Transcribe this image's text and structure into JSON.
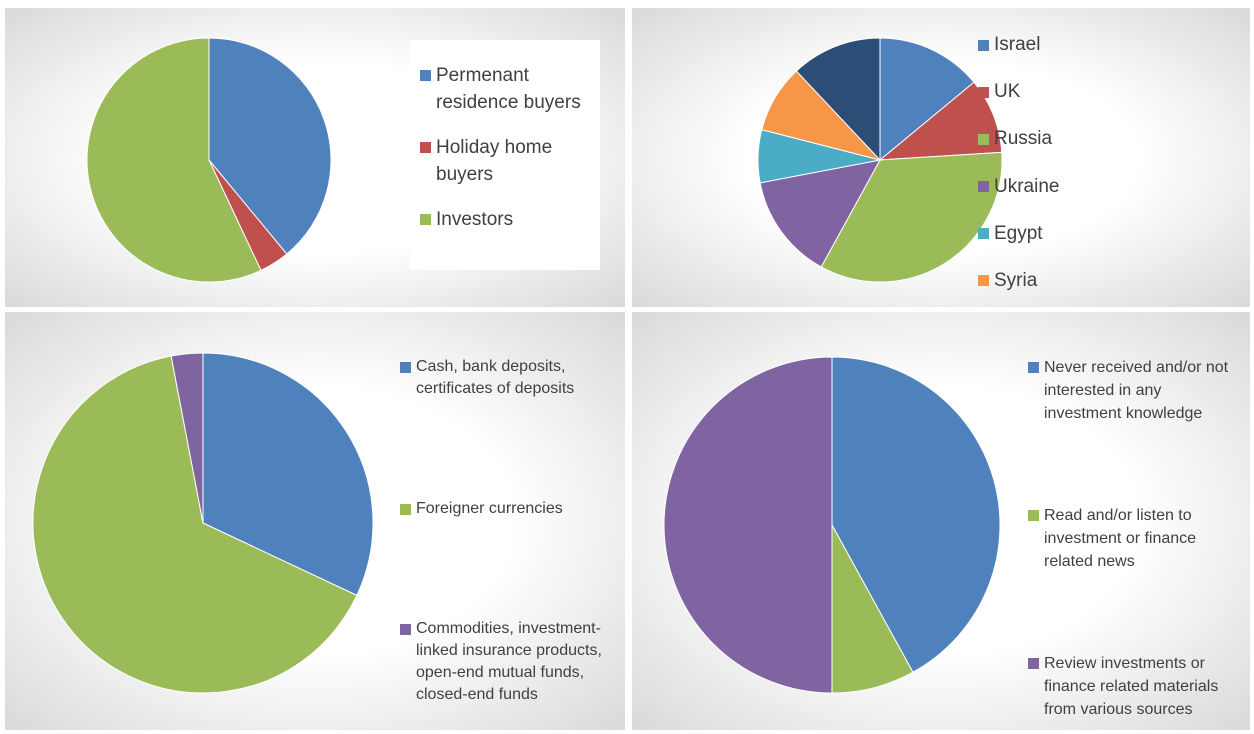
{
  "chart_data": [
    {
      "type": "pie",
      "categories": [
        "Permenant residence buyers",
        "Holiday home buyers",
        "Investors"
      ],
      "values": [
        39,
        4,
        57
      ],
      "colors": [
        "#4f81bd",
        "#c0504d",
        "#9bbb59"
      ],
      "legend": "right"
    },
    {
      "type": "pie",
      "categories": [
        "Israel",
        "UK",
        "Russia",
        "Ukraine",
        "Egypt",
        "Syria",
        null
      ],
      "values": [
        14,
        10,
        34,
        14,
        7,
        9,
        12
      ],
      "colors": [
        "#4f81bd",
        "#c0504d",
        "#9bbb59",
        "#8064a2",
        "#4bacc6",
        "#f79646",
        "#2c4d75"
      ],
      "legend": "right"
    },
    {
      "type": "pie",
      "categories": [
        "Cash, bank deposits, certificates of deposits",
        "Foreigner currencies",
        "Commodities, investment-linked insurance products, open-end mutual funds, closed-end funds"
      ],
      "values": [
        32,
        65,
        3
      ],
      "colors": [
        "#4f81bd",
        "#9bbb59",
        "#8064a2"
      ],
      "legend": "right"
    },
    {
      "type": "pie",
      "categories": [
        "Never received and/or not interested in any investment knowledge",
        "Read and/or listen to investment or finance related news",
        "Review investments or finance related materials from various sources"
      ],
      "values": [
        42,
        8,
        50
      ],
      "colors": [
        "#4f81bd",
        "#9bbb59",
        "#8064a2"
      ],
      "legend": "right"
    }
  ]
}
